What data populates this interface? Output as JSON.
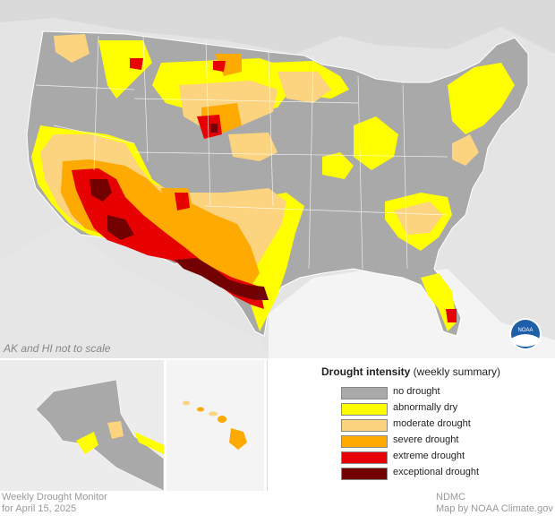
{
  "map": {
    "note": "AK and HI not to scale",
    "colors": {
      "background_land": "#dcdcdc",
      "water": "#f0f0f0",
      "no_drought": "#a9a9a9",
      "abnormally_dry": "#ffff00",
      "moderate_drought": "#fcd37f",
      "severe_drought": "#ffaa00",
      "extreme_drought": "#e60000",
      "exceptional_drought": "#730000"
    }
  },
  "legend": {
    "title_bold": "Drought intensity",
    "title_rest": " (weekly summary)",
    "items": [
      {
        "label": "no drought",
        "color": "#a9a9a9"
      },
      {
        "label": "abnormally dry",
        "color": "#ffff00"
      },
      {
        "label": "moderate drought",
        "color": "#fcd37f"
      },
      {
        "label": "severe drought",
        "color": "#ffaa00"
      },
      {
        "label": "extreme drought",
        "color": "#e60000"
      },
      {
        "label": "exceptional drought",
        "color": "#730000"
      }
    ]
  },
  "footer": {
    "left_line1": "Weekly Drought Monitor",
    "left_line2": "for April 15, 2025",
    "right_line1": "NDMC",
    "right_line2": "Map by NOAA Climate.gov"
  },
  "logo": {
    "text": "NOAA"
  }
}
